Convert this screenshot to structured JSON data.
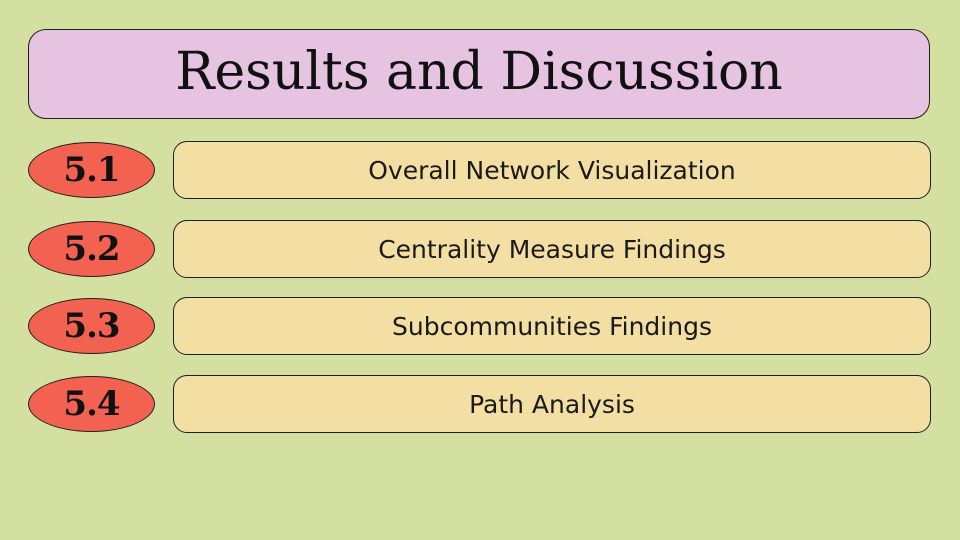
{
  "title": "Results and Discussion",
  "items": [
    {
      "number": "5.1",
      "label": "Overall Network Visualization"
    },
    {
      "number": "5.2",
      "label": "Centrality Measure Findings"
    },
    {
      "number": "5.3",
      "label": "Subcommunities Findings"
    },
    {
      "number": "5.4",
      "label": "Path Analysis"
    }
  ],
  "colors": {
    "background": "#d3e09f",
    "title_box": "#e6c3e0",
    "badge": "#f36150",
    "pill": "#f3dfa3"
  }
}
